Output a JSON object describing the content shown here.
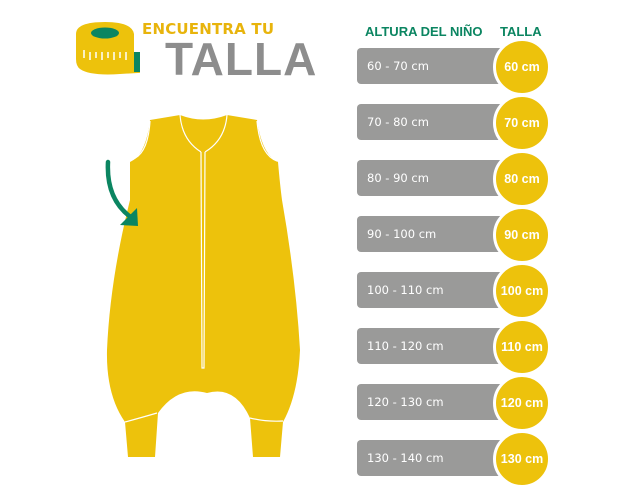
{
  "header": {
    "line1": "ENCUENTRA TU",
    "line2": "TALLA"
  },
  "table": {
    "col_height": "ALTURA DEL NIÑO",
    "col_size": "TALLA",
    "rows": [
      {
        "range": "60 - 70  cm",
        "size": "60 cm"
      },
      {
        "range": "70 - 80 cm",
        "size": "70 cm"
      },
      {
        "range": "80 - 90 cm",
        "size": "80 cm"
      },
      {
        "range": "90 - 100 cm",
        "size": "90 cm"
      },
      {
        "range": "100 - 110 cm",
        "size": "100 cm"
      },
      {
        "range": "110 - 120 cm",
        "size": "110 cm"
      },
      {
        "range": "120 - 130 cm",
        "size": "120 cm"
      },
      {
        "range": "130 - 140 cm",
        "size": "130 cm"
      }
    ]
  },
  "colors": {
    "yellow": "#edc20c",
    "green": "#0b8561",
    "gray": "#9a9a99"
  },
  "icons": [
    "measuring-tape-icon",
    "sleep-sack-illustration",
    "curved-arrow-icon"
  ]
}
